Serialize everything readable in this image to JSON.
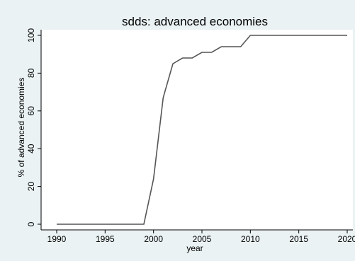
{
  "chart_data": {
    "type": "line",
    "title": "sdds: advanced economies",
    "xlabel": "year",
    "ylabel": "% of advanced economies",
    "xlim": [
      1990,
      2020
    ],
    "ylim": [
      0,
      100
    ],
    "x_ticks": [
      1990,
      1995,
      2000,
      2005,
      2010,
      2015,
      2020
    ],
    "y_ticks": [
      0,
      20,
      40,
      60,
      80,
      100
    ],
    "grid": false,
    "legend": "none",
    "colors": {
      "background": "#eaf2f3",
      "plot_area": "#ffffff",
      "line": "#555555"
    },
    "series": [
      {
        "x": [
          1990,
          1991,
          1992,
          1993,
          1994,
          1995,
          1996,
          1997,
          1998,
          1999,
          2000,
          2001,
          2002,
          2003,
          2004,
          2005,
          2006,
          2007,
          2008,
          2009,
          2010,
          2011,
          2012,
          2013,
          2014,
          2015,
          2016,
          2017,
          2018,
          2019,
          2020
        ],
        "values": [
          0,
          0,
          0,
          0,
          0,
          0,
          0,
          0,
          0,
          0,
          24,
          67,
          85,
          88,
          88,
          91,
          91,
          94,
          94,
          94,
          100,
          100,
          100,
          100,
          100,
          100,
          100,
          100,
          100,
          100,
          100
        ]
      }
    ]
  }
}
